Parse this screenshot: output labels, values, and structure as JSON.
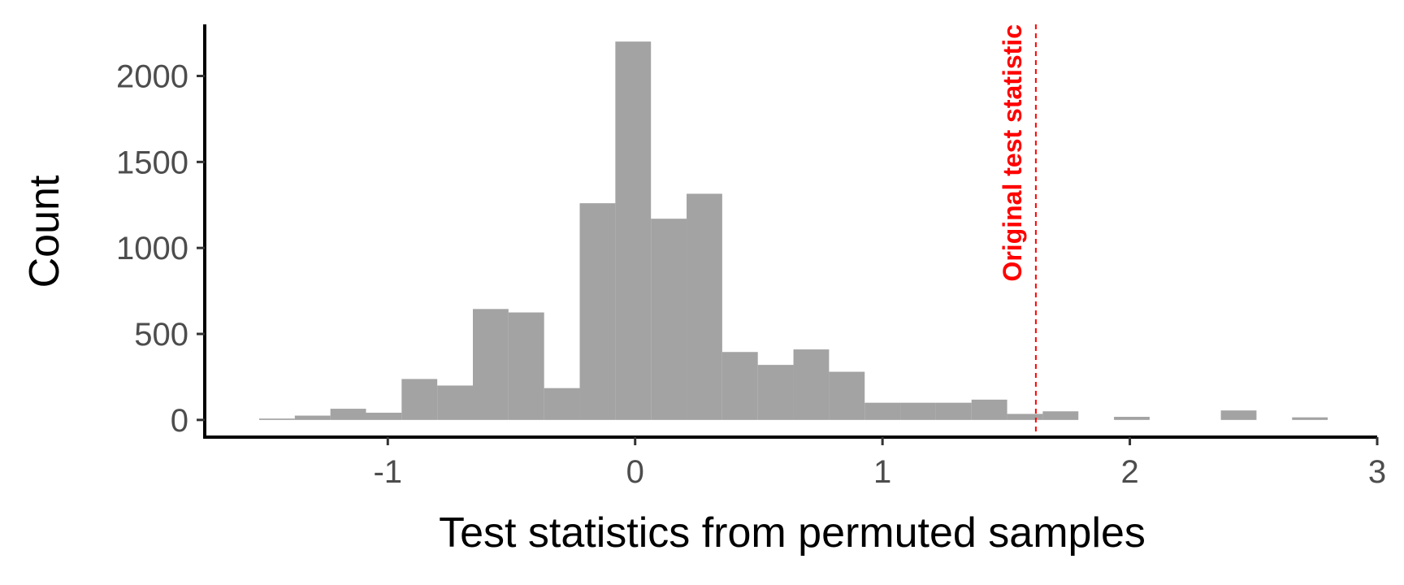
{
  "chart_data": {
    "type": "bar",
    "subtype": "histogram",
    "xlabel": "Test statistics from permuted samples",
    "ylabel": "Count",
    "xlim": [
      -1.74,
      3.0
    ],
    "ylim": [
      -100,
      2300
    ],
    "x_ticks": [
      -1,
      0,
      1,
      2,
      3
    ],
    "y_ticks": [
      0,
      500,
      1000,
      1500,
      2000
    ],
    "x_tick_labels": [
      "-1",
      "0",
      "1",
      "2",
      "3"
    ],
    "y_tick_labels": [
      "0",
      "500",
      "1000",
      "1500",
      "2000"
    ],
    "bin_width": 0.144,
    "bins": [
      {
        "x0": -1.52,
        "x1": -1.376,
        "count": 8
      },
      {
        "x0": -1.376,
        "x1": -1.232,
        "count": 25
      },
      {
        "x0": -1.232,
        "x1": -1.088,
        "count": 65
      },
      {
        "x0": -1.088,
        "x1": -0.944,
        "count": 42
      },
      {
        "x0": -0.944,
        "x1": -0.8,
        "count": 238
      },
      {
        "x0": -0.8,
        "x1": -0.656,
        "count": 200
      },
      {
        "x0": -0.656,
        "x1": -0.512,
        "count": 645
      },
      {
        "x0": -0.512,
        "x1": -0.368,
        "count": 625
      },
      {
        "x0": -0.368,
        "x1": -0.224,
        "count": 185
      },
      {
        "x0": -0.224,
        "x1": -0.08,
        "count": 1260
      },
      {
        "x0": -0.08,
        "x1": 0.064,
        "count": 2200
      },
      {
        "x0": 0.064,
        "x1": 0.208,
        "count": 1170
      },
      {
        "x0": 0.208,
        "x1": 0.352,
        "count": 1315
      },
      {
        "x0": 0.352,
        "x1": 0.496,
        "count": 395
      },
      {
        "x0": 0.496,
        "x1": 0.64,
        "count": 320
      },
      {
        "x0": 0.64,
        "x1": 0.784,
        "count": 410
      },
      {
        "x0": 0.784,
        "x1": 0.928,
        "count": 280
      },
      {
        "x0": 0.928,
        "x1": 1.072,
        "count": 100
      },
      {
        "x0": 1.072,
        "x1": 1.216,
        "count": 100
      },
      {
        "x0": 1.216,
        "x1": 1.36,
        "count": 100
      },
      {
        "x0": 1.36,
        "x1": 1.504,
        "count": 118
      },
      {
        "x0": 1.504,
        "x1": 1.648,
        "count": 35
      },
      {
        "x0": 1.648,
        "x1": 1.792,
        "count": 50
      },
      {
        "x0": 1.792,
        "x1": 1.936,
        "count": 0
      },
      {
        "x0": 1.936,
        "x1": 2.08,
        "count": 18
      },
      {
        "x0": 2.08,
        "x1": 2.224,
        "count": 0
      },
      {
        "x0": 2.224,
        "x1": 2.368,
        "count": 0
      },
      {
        "x0": 2.368,
        "x1": 2.512,
        "count": 55
      },
      {
        "x0": 2.512,
        "x1": 2.656,
        "count": 0
      },
      {
        "x0": 2.656,
        "x1": 2.8,
        "count": 15
      }
    ],
    "reference_line": {
      "x": 1.62,
      "label": "Original test statistic",
      "color": "#ff0000",
      "style": "dashed"
    },
    "bar_color": "#a3a3a3",
    "axis_color": "#000000"
  }
}
